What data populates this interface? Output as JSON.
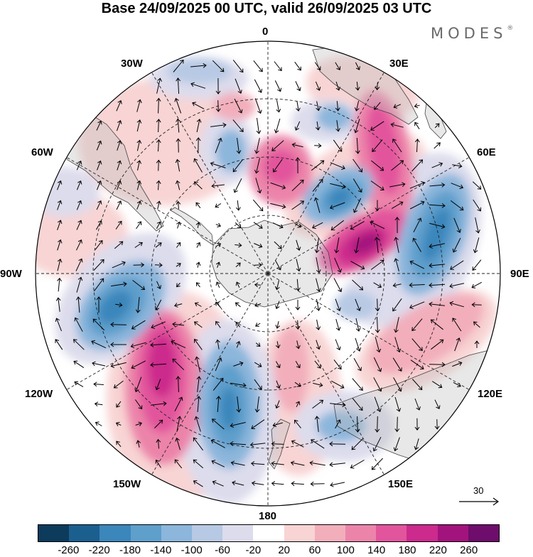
{
  "title": "Base 24/09/2025 00 UTC, valid 26/09/2025 03 UTC",
  "brand": "MODES",
  "brand_mark": "®",
  "longitude_labels": {
    "lon_0": "0",
    "lon_30e": "30E",
    "lon_60e": "60E",
    "lon_90e": "90E",
    "lon_120e": "120E",
    "lon_150e": "150E",
    "lon_180": "180",
    "lon_150w": "150W",
    "lon_120w": "120W",
    "lon_90w": "90W",
    "lon_60w": "60W",
    "lon_30w": "30W"
  },
  "reference_vector": {
    "label": "30"
  },
  "colorbar": {
    "colors": [
      "#0d3b5c",
      "#1b5f8f",
      "#3b86bb",
      "#5e9fcc",
      "#8cb6db",
      "#b7c9e4",
      "#dcdcec",
      "#ffffff",
      "#f8d4d4",
      "#f2aebb",
      "#ec84aa",
      "#e2559c",
      "#cc2a8c",
      "#a3137d",
      "#6e0d6b"
    ],
    "tick_labels": [
      "-260",
      "-220",
      "-180",
      "-140",
      "-100",
      "-60",
      "-20",
      "20",
      "60",
      "100",
      "140",
      "180",
      "220",
      "260"
    ]
  }
}
